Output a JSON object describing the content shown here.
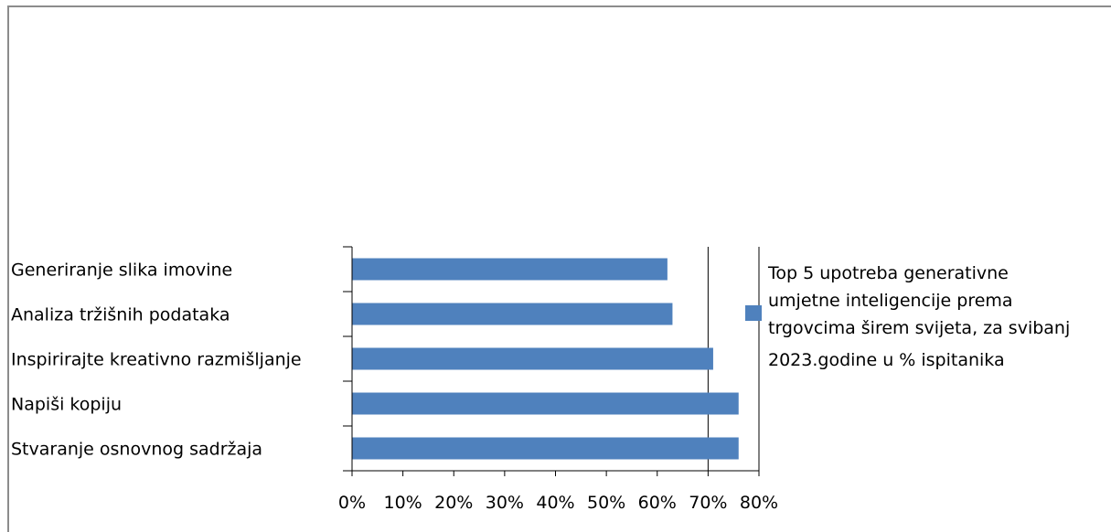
{
  "chart_data": {
    "type": "bar",
    "orientation": "horizontal",
    "categories": [
      "Generiranje slika imovine",
      "Analiza tržišnih podataka",
      "Inspirirajte kreativno razmišljanje",
      "Napiši kopiju",
      "Stvaranje osnovnog sadržaja"
    ],
    "series": [
      {
        "name": "Top 5 upotreba generativne umjetne inteligencije prema trgovcima širem svijeta, za svibanj 2023.godine u % ispitanika",
        "name_lines": [
          "Top 5 upotreba generativne",
          "umjetne inteligencije prema",
          "trgovcima širem svijeta, za svibanj",
          "2023.godine u % ispitanika"
        ],
        "values": [
          62,
          63,
          71,
          76,
          76
        ],
        "color": "#4f81bd"
      }
    ],
    "xlim": [
      0,
      80
    ],
    "ticks": [
      0,
      10,
      20,
      30,
      40,
      50,
      60,
      70,
      80
    ],
    "tick_labels": [
      "0%",
      "10%",
      "20%",
      "30%",
      "40%",
      "50%",
      "60%",
      "70%",
      "80%"
    ],
    "major_gridlines": [
      70,
      80
    ],
    "legend_position": "right"
  }
}
